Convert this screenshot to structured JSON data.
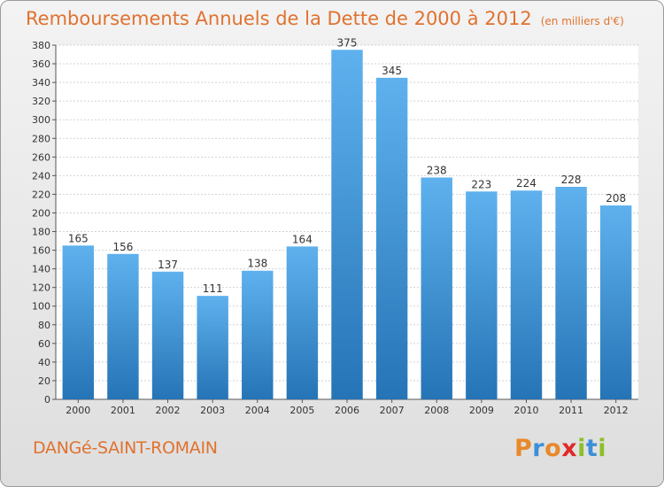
{
  "header": {
    "title": "Remboursements Annuels de la Dette de 2000 à 2012",
    "subtitle": "(en milliers d'€)"
  },
  "footer": {
    "commune": "DANGé-SAINT-ROMAIN",
    "logo_letters": [
      "P",
      "r",
      "o",
      "x",
      "i",
      "t",
      "i"
    ],
    "logo_colors": [
      "#e8892a",
      "#3c8fd8",
      "#e8892a",
      "#e02a2a",
      "#8cbf2a",
      "#3c8fd8",
      "#8cbf2a"
    ]
  },
  "colors": {
    "bar_light": "#5fb1ee",
    "bar_dark": "#2574b6",
    "title": "#e0722f"
  },
  "chart_data": {
    "type": "bar",
    "title": "Remboursements Annuels de la Dette de 2000 à 2012",
    "subtitle": "(en milliers d'€)",
    "categories": [
      "2000",
      "2001",
      "2002",
      "2003",
      "2004",
      "2005",
      "2006",
      "2007",
      "2008",
      "2009",
      "2010",
      "2011",
      "2012"
    ],
    "values": [
      165,
      156,
      137,
      111,
      138,
      164,
      375,
      345,
      238,
      223,
      224,
      228,
      208
    ],
    "ylim": [
      0,
      380
    ],
    "yticks": [
      0,
      20,
      40,
      60,
      80,
      100,
      120,
      140,
      160,
      180,
      200,
      220,
      240,
      260,
      280,
      300,
      320,
      340,
      360,
      380
    ],
    "grid": true,
    "xlabel": "",
    "ylabel": ""
  }
}
